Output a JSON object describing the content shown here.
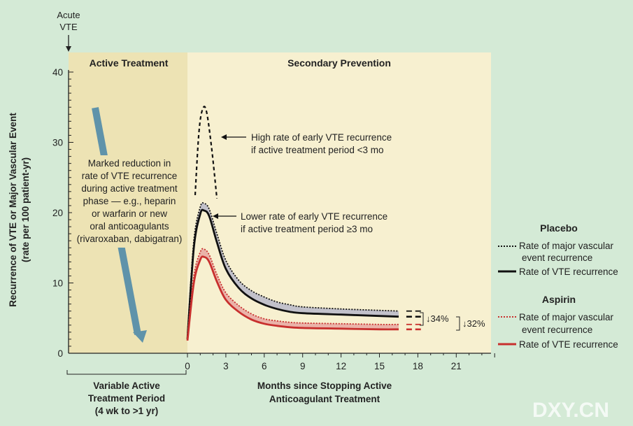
{
  "colors": {
    "background": "#d4ead6",
    "active_panel": "#ede3b4",
    "prevention_panel": "#f7f0d0",
    "placebo": "#111111",
    "aspirin": "#c8302e",
    "placebo_band": "#b9b8c9",
    "aspirin_band": "#e8a8a2",
    "arrow": "#5f93aa"
  },
  "labels": {
    "acute_line1": "Acute",
    "acute_line2": "VTE",
    "active_title": "Active Treatment",
    "secondary_title": "Secondary Prevention",
    "ylabel_line1": "Recurrence of VTE or Major Vascular Event",
    "ylabel_line2": "(rate per 100 patient-yr)",
    "note_lines": [
      "Marked reduction in",
      "rate of VTE recurrence",
      "during active treatment",
      "phase — e.g., heparin",
      "or warfarin or new",
      "oral anticoagulants",
      "(rivaroxaban, dabigatran)"
    ],
    "high_lines": [
      "High rate of early VTE recurrence",
      "if active treatment period <3 mo"
    ],
    "lower_lines": [
      "Lower rate of early VTE recurrence",
      "if active treatment period ≥3 mo"
    ],
    "variable_lines": [
      "Variable Active",
      "Treatment Period",
      "(4 wk to >1 yr)"
    ],
    "xlabel_lines": [
      "Months since Stopping Active",
      "Anticoagulant Treatment"
    ],
    "reduction_placebo_vte": "↓34%",
    "reduction_major": "↓32%",
    "watermark": "DXY.CN"
  },
  "legend": {
    "placebo_title": "Placebo",
    "placebo_major_lines": [
      "Rate of major vascular",
      "event recurrence"
    ],
    "placebo_vte": "Rate of VTE recurrence",
    "aspirin_title": "Aspirin",
    "aspirin_major_lines": [
      "Rate of major vascular",
      "event recurrence"
    ],
    "aspirin_vte": "Rate of VTE recurrence"
  },
  "chart_data": {
    "type": "line",
    "xlabel": "Months since Stopping Active Anticoagulant Treatment",
    "ylabel": "Recurrence of VTE or Major Vascular Event (rate per 100 patient-yr)",
    "x_ticks": [
      0,
      3,
      6,
      9,
      12,
      15,
      18,
      21
    ],
    "y_ticks": [
      0,
      10,
      20,
      30,
      40
    ],
    "xlim": [
      0,
      24
    ],
    "ylim": [
      0,
      40
    ],
    "series": [
      {
        "name": "Placebo — Rate of VTE recurrence",
        "style": "solid",
        "color": "#111111",
        "x": [
          0,
          0.5,
          1.0,
          1.3,
          1.7,
          2.3,
          3,
          4,
          5,
          6,
          7,
          8,
          9,
          12,
          15,
          16.5
        ],
        "y": [
          2,
          15,
          19.8,
          20.3,
          19.5,
          15.8,
          12,
          9.3,
          7.8,
          6.9,
          6.3,
          5.9,
          5.7,
          5.5,
          5.3,
          5.2
        ]
      },
      {
        "name": "Placebo — Rate of major vascular event recurrence",
        "style": "dotted",
        "color": "#111111",
        "x": [
          0,
          0.5,
          1.0,
          1.3,
          1.7,
          2.3,
          3,
          4,
          5,
          6,
          7,
          8,
          9,
          12,
          15,
          16.5
        ],
        "y": [
          2.5,
          16,
          20.8,
          21.3,
          20.5,
          17,
          13.2,
          10.4,
          8.9,
          8,
          7.3,
          6.9,
          6.6,
          6.3,
          6.1,
          6.0
        ]
      },
      {
        "name": "Placebo — High early VTE recurrence if active treatment period <3 mo",
        "style": "dashed",
        "color": "#111111",
        "x": [
          0.6,
          0.9,
          1.2,
          1.5,
          1.9,
          2.3
        ],
        "y": [
          22.5,
          31.5,
          34.8,
          34.3,
          29,
          22
        ]
      },
      {
        "name": "Aspirin — Rate of VTE recurrence",
        "style": "solid",
        "color": "#c8302e",
        "x": [
          0,
          0.5,
          1.0,
          1.3,
          1.7,
          2.3,
          3,
          4,
          5,
          6,
          7,
          8,
          9,
          12,
          15,
          16.5
        ],
        "y": [
          1.8,
          10,
          13.3,
          13.7,
          13,
          10.2,
          7.6,
          5.9,
          4.8,
          4.2,
          3.9,
          3.7,
          3.6,
          3.5,
          3.4,
          3.4
        ]
      },
      {
        "name": "Aspirin — Rate of major vascular event recurrence",
        "style": "dotted",
        "color": "#c8302e",
        "x": [
          0,
          0.5,
          1.0,
          1.3,
          1.7,
          2.3,
          3,
          4,
          5,
          6,
          7,
          8,
          9,
          12,
          15,
          16.5
        ],
        "y": [
          2.3,
          11,
          14.4,
          14.8,
          14,
          11.2,
          8.6,
          6.8,
          5.6,
          4.9,
          4.6,
          4.4,
          4.3,
          4.2,
          4.1,
          4.1
        ]
      }
    ],
    "annotations": [
      "High rate of early VTE recurrence if active treatment period <3 mo",
      "Lower rate of early VTE recurrence if active treatment period ≥3 mo",
      "↓34%",
      "↓32%"
    ]
  }
}
